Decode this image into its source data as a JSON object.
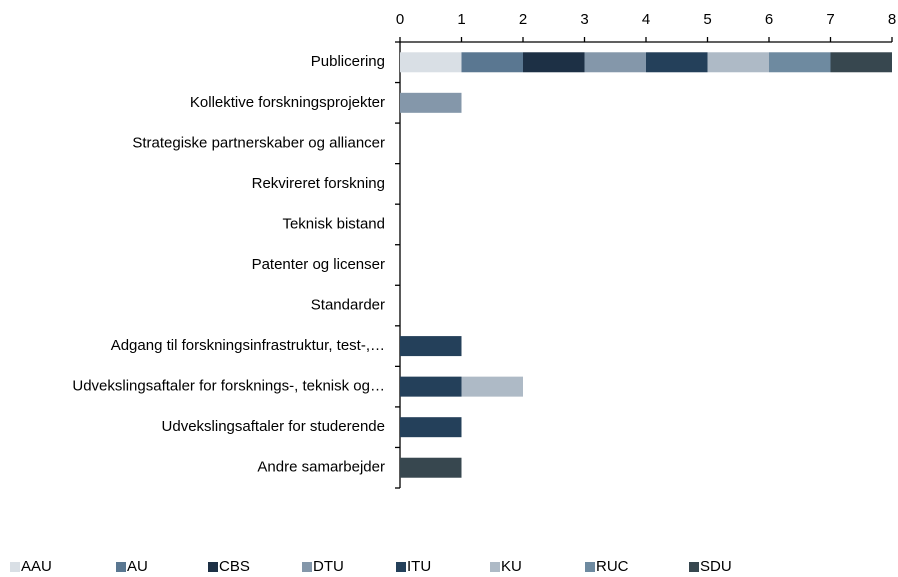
{
  "chart_data": {
    "type": "bar",
    "orientation": "horizontal",
    "stacked": true,
    "categories": [
      "Publicering",
      "Kollektive forskningsprojekter",
      "Strategiske partnerskaber og alliancer",
      "Rekvireret forskning",
      "Teknisk bistand",
      "Patenter og licenser",
      "Standarder",
      "Adgang til forskningsinfrastruktur, test-,…",
      "Udvekslingsaftaler for forsknings-, teknisk og…",
      "Udvekslingsaftaler for studerende",
      "Andre samarbejder"
    ],
    "series": [
      {
        "name": "AAU",
        "color": "#d9dfe5",
        "values": [
          1,
          0,
          0,
          0,
          0,
          0,
          0,
          0,
          0,
          0,
          0
        ]
      },
      {
        "name": "AU",
        "color": "#5a7791",
        "values": [
          1,
          0,
          0,
          0,
          0,
          0,
          0,
          0,
          0,
          0,
          0
        ]
      },
      {
        "name": "CBS",
        "color": "#1d3045",
        "values": [
          1,
          0,
          0,
          0,
          0,
          0,
          0,
          0,
          0,
          0,
          0
        ]
      },
      {
        "name": "DTU",
        "color": "#8497aa",
        "values": [
          1,
          1,
          0,
          0,
          0,
          0,
          0,
          0,
          0,
          0,
          0
        ]
      },
      {
        "name": "ITU",
        "color": "#24405a",
        "values": [
          1,
          0,
          0,
          0,
          0,
          0,
          0,
          1,
          1,
          1,
          0
        ]
      },
      {
        "name": "KU",
        "color": "#aebac6",
        "values": [
          1,
          0,
          0,
          0,
          0,
          0,
          0,
          0,
          1,
          0,
          0
        ]
      },
      {
        "name": "RUC",
        "color": "#6e8aa0",
        "values": [
          1,
          0,
          0,
          0,
          0,
          0,
          0,
          0,
          0,
          0,
          0
        ]
      },
      {
        "name": "SDU",
        "color": "#37474f",
        "values": [
          1,
          0,
          0,
          0,
          0,
          0,
          0,
          0,
          0,
          0,
          1
        ]
      }
    ],
    "xlim": [
      0,
      8
    ],
    "xticks": [
      0,
      1,
      2,
      3,
      4,
      5,
      6,
      7,
      8
    ],
    "legend": "bottom"
  }
}
